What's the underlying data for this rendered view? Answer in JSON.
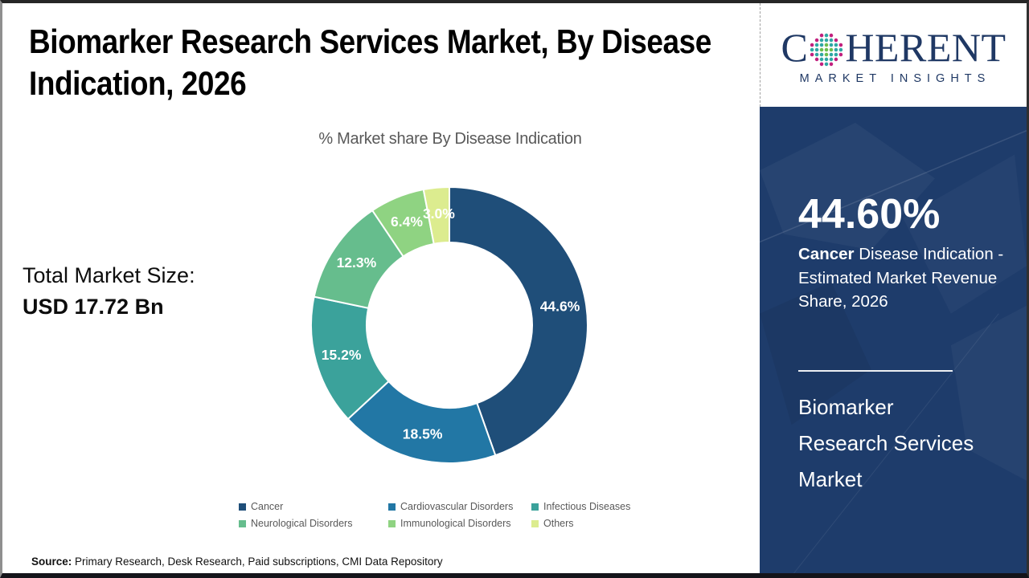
{
  "header": {
    "title": "Biomarker Research Services Market, By Disease\nIndication, 2026"
  },
  "logo": {
    "name": "Coherent Market Insights",
    "word_prefix": "C",
    "word_suffix": "HERENT",
    "tagline": "MARKET INSIGHTS",
    "brand_navy": "#1F3864",
    "globe_colors": {
      "outer": "#C2207E",
      "mid": "#2FA7A4",
      "inner": "#6BBE4D"
    }
  },
  "left_panel": {
    "market_size_label": "Total Market Size:",
    "market_size_value": "USD 17.72 Bn"
  },
  "chart_data": {
    "type": "pie",
    "subtype": "donut",
    "title": "% Market share By Disease Indication",
    "categories": [
      "Cancer",
      "Cardiovascular Disorders",
      "Infectious Diseases",
      "Neurological Disorders",
      "Immunological Disorders",
      "Others"
    ],
    "values": [
      44.6,
      18.5,
      15.2,
      12.3,
      6.4,
      3.0
    ],
    "labels": [
      "44.6%",
      "18.5%",
      "15.2%",
      "12.3%",
      "6.4%",
      "3.0%"
    ],
    "colors": [
      "#1F4E79",
      "#2277A5",
      "#3BA29B",
      "#66BD8D",
      "#8FD382",
      "#DCEC8F"
    ],
    "start_angle_deg": 0,
    "direction": "clockwise",
    "hole_ratio": 0.6,
    "legend_position": "bottom",
    "data_label_color": "#FFFFFF"
  },
  "sidebar": {
    "background": "#1E3C6B",
    "highlight_value": "44.60%",
    "highlight_term": "Cancer",
    "highlight_rest": " Disease Indication - Estimated Market Revenue Share, 2026",
    "market_name": "Biomarker\nResearch Services\nMarket"
  },
  "footer": {
    "source_label": "Source:",
    "source_text": " Primary Research, Desk Research, Paid subscriptions, CMI Data Repository"
  }
}
